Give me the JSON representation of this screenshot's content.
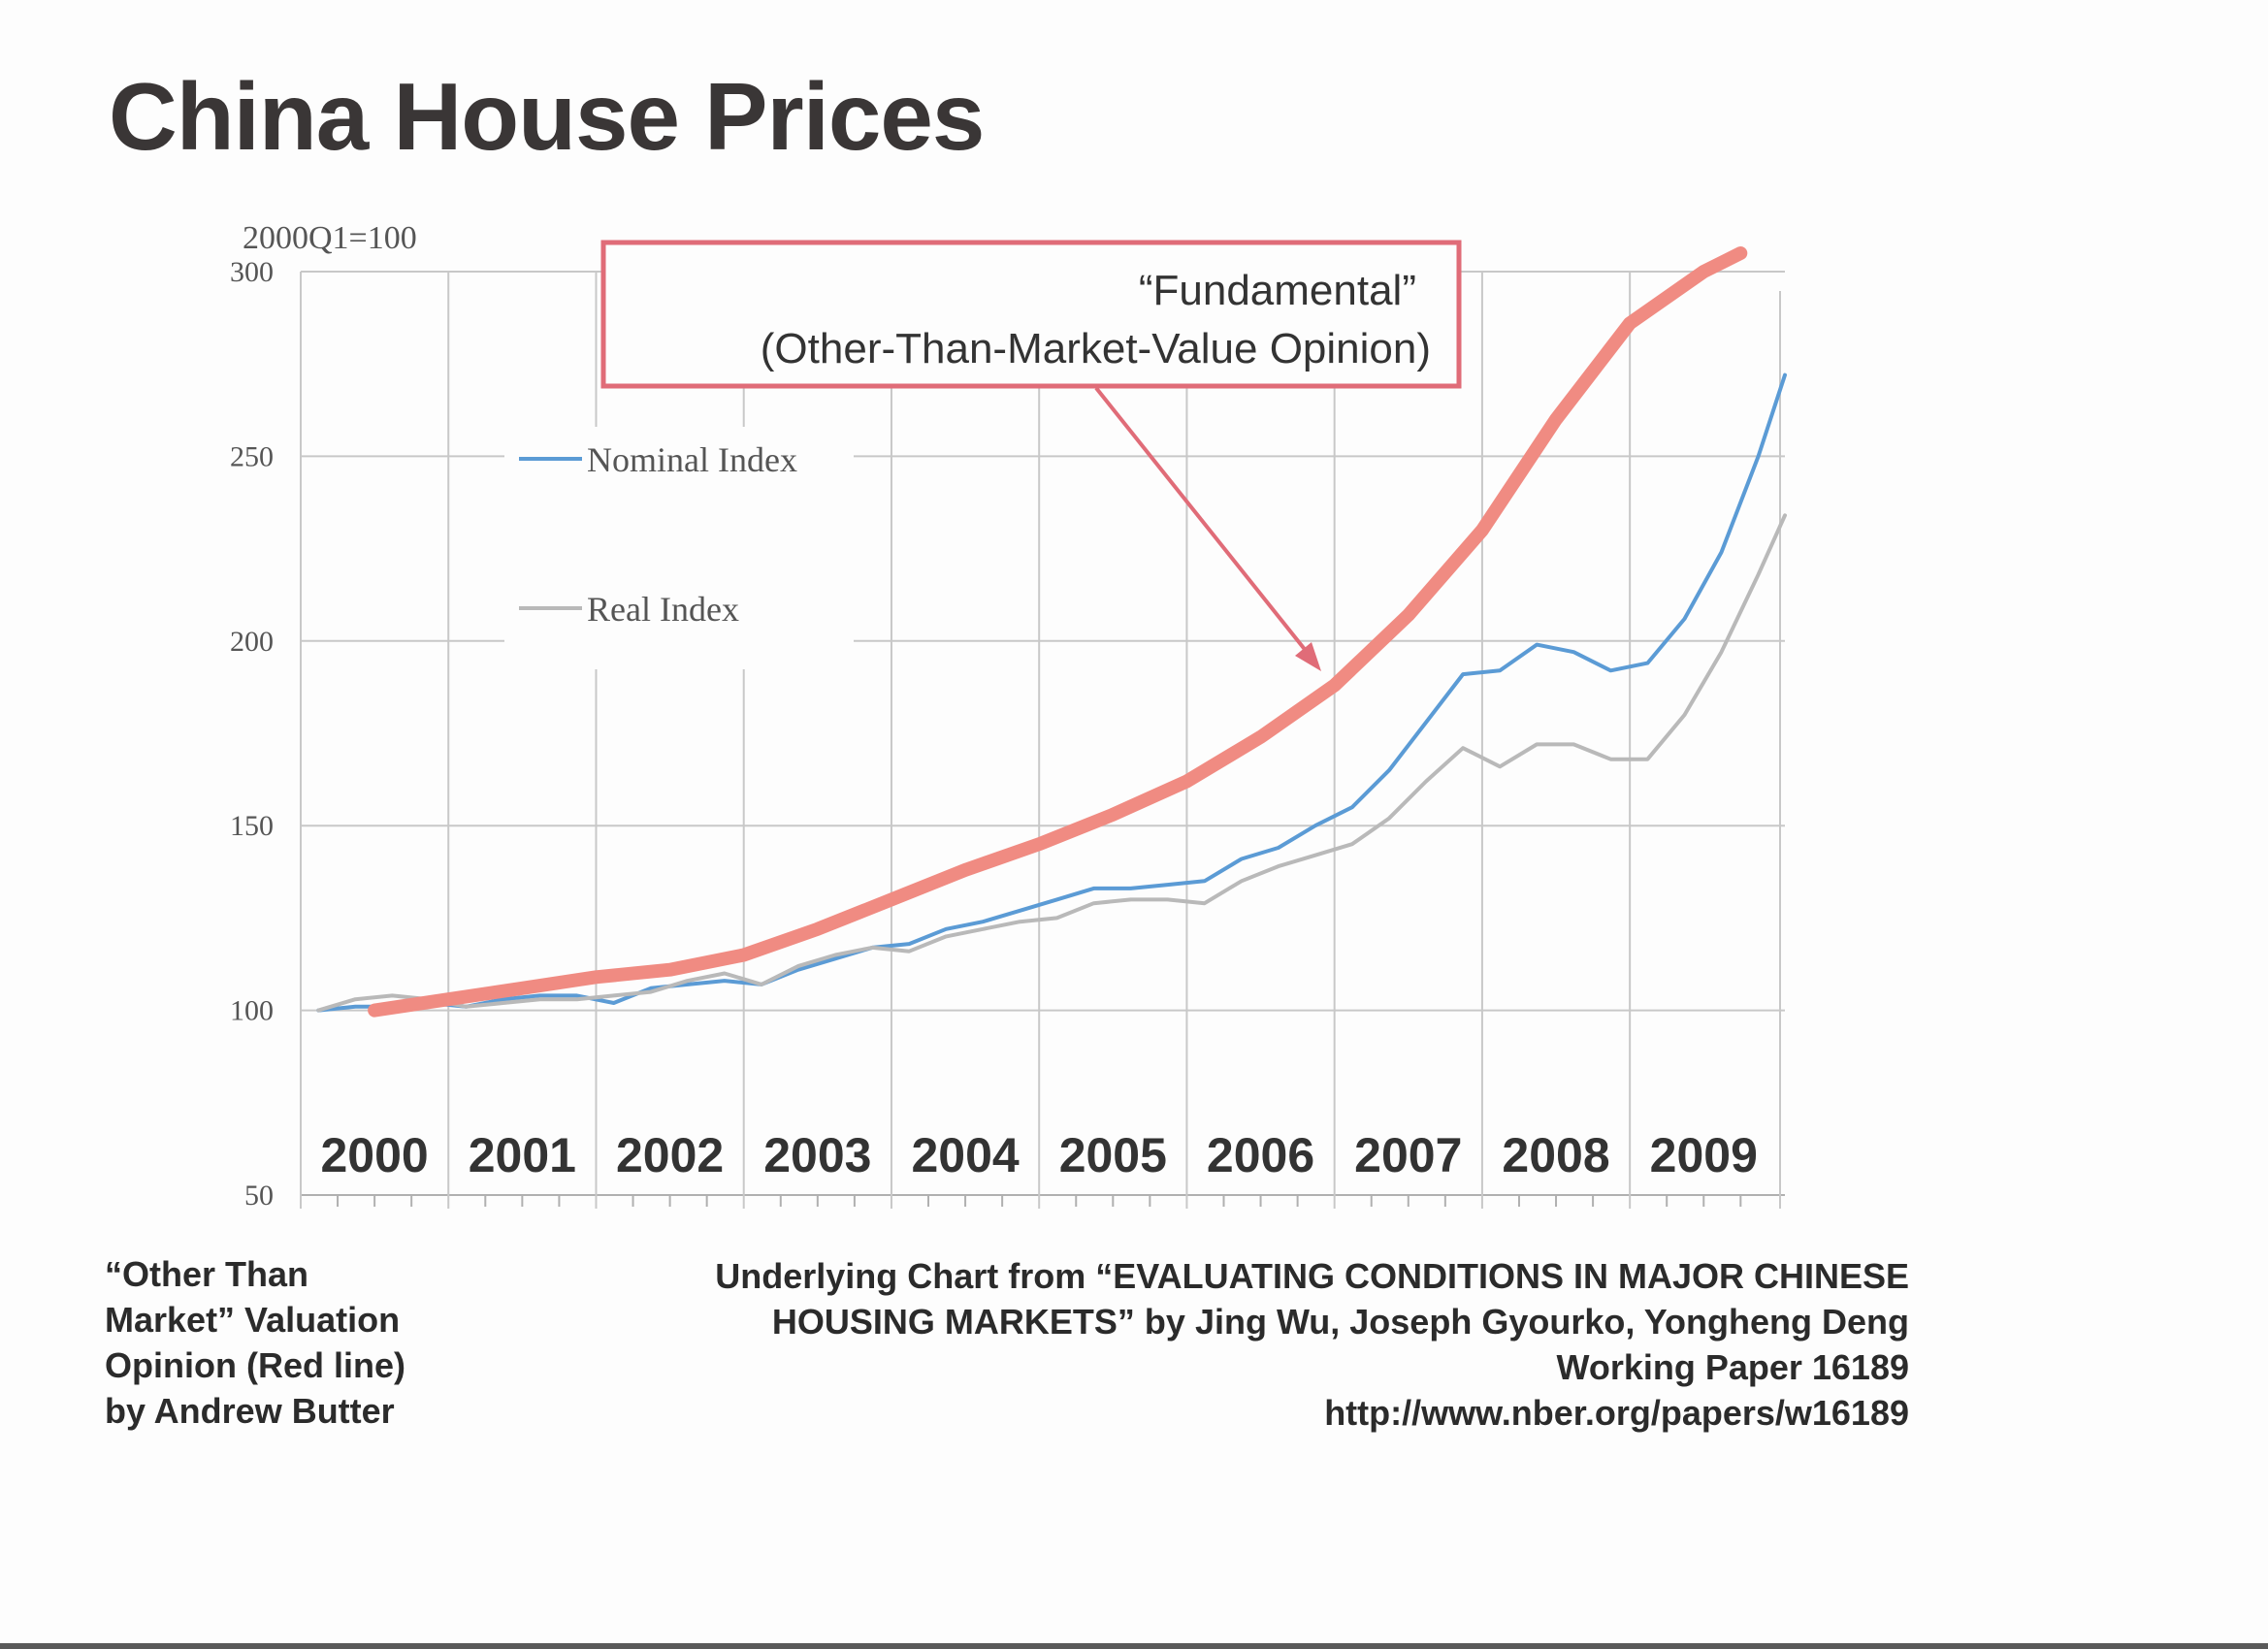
{
  "title": "China House Prices",
  "colors": {
    "nominal": "#5b9bd5",
    "real": "#b9b9b9",
    "fundamental": "#f08b82",
    "callout_border": "#e06c78",
    "grid": "#c8c8c8"
  },
  "chart_data": {
    "type": "line",
    "index_label": "2000Q1=100",
    "ylim": [
      50,
      300
    ],
    "yticks": [
      50,
      100,
      150,
      200,
      250,
      300
    ],
    "year_labels": [
      "2000",
      "2001",
      "2002",
      "2003",
      "2004",
      "2005",
      "2006",
      "2007",
      "2008",
      "2009"
    ],
    "xlim": [
      2000.0,
      2010.05
    ],
    "grid": true,
    "series": [
      {
        "name": "Nominal Index",
        "x": [
          2000.12,
          2000.37,
          2000.62,
          2000.87,
          2001.12,
          2001.37,
          2001.62,
          2001.87,
          2002.12,
          2002.37,
          2002.62,
          2002.87,
          2003.12,
          2003.37,
          2003.62,
          2003.87,
          2004.12,
          2004.37,
          2004.62,
          2004.87,
          2005.12,
          2005.37,
          2005.62,
          2005.87,
          2006.12,
          2006.37,
          2006.62,
          2006.87,
          2007.12,
          2007.37,
          2007.62,
          2007.87,
          2008.12,
          2008.37,
          2008.62,
          2008.87,
          2009.12,
          2009.37,
          2009.62,
          2009.87,
          2010.05
        ],
        "values": [
          100,
          101,
          101,
          102,
          101,
          103,
          104,
          104,
          102,
          106,
          107,
          108,
          107,
          111,
          114,
          117,
          118,
          122,
          124,
          127,
          130,
          133,
          133,
          134,
          135,
          141,
          144,
          150,
          155,
          165,
          178,
          191,
          192,
          199,
          197,
          192,
          194,
          206,
          224,
          250,
          272
        ]
      },
      {
        "name": "Real Index",
        "x": [
          2000.12,
          2000.37,
          2000.62,
          2000.87,
          2001.12,
          2001.37,
          2001.62,
          2001.87,
          2002.12,
          2002.37,
          2002.62,
          2002.87,
          2003.12,
          2003.37,
          2003.62,
          2003.87,
          2004.12,
          2004.37,
          2004.62,
          2004.87,
          2005.12,
          2005.37,
          2005.62,
          2005.87,
          2006.12,
          2006.37,
          2006.62,
          2006.87,
          2007.12,
          2007.37,
          2007.62,
          2007.87,
          2008.12,
          2008.37,
          2008.62,
          2008.87,
          2009.12,
          2009.37,
          2009.62,
          2009.87,
          2010.05
        ],
        "values": [
          100,
          103,
          104,
          103,
          101,
          102,
          103,
          103,
          104,
          105,
          108,
          110,
          107,
          112,
          115,
          117,
          116,
          120,
          122,
          124,
          125,
          129,
          130,
          130,
          129,
          135,
          139,
          142,
          145,
          152,
          162,
          171,
          166,
          172,
          172,
          168,
          168,
          180,
          197,
          218,
          234
        ]
      },
      {
        "name": "Fundamental",
        "x": [
          2000.5,
          2001.0,
          2001.5,
          2002.0,
          2002.5,
          2003.0,
          2003.5,
          2004.0,
          2004.5,
          2005.0,
          2005.5,
          2006.0,
          2006.5,
          2007.0,
          2007.5,
          2008.0,
          2008.5,
          2009.0,
          2009.5,
          2009.75
        ],
        "values": [
          100,
          103,
          106,
          109,
          111,
          115,
          122,
          130,
          138,
          145,
          153,
          162,
          174,
          188,
          207,
          230,
          260,
          286,
          300,
          305
        ]
      }
    ],
    "legend": [
      "Nominal Index",
      "Real Index"
    ]
  },
  "callout": {
    "line1": "“Fundamental”",
    "line2": "(Other-Than-Market-Value Opinion)"
  },
  "footnote_left": [
    "“Other Than",
    "Market” Valuation",
    "Opinion (Red line)",
    "by Andrew Butter"
  ],
  "source": [
    "Underlying Chart from “EVALUATING CONDITIONS IN MAJOR CHINESE",
    "HOUSING MARKETS” by Jing Wu, Joseph Gyourko, Yongheng Deng",
    "Working Paper 16189",
    "http://www.nber.org/papers/w16189"
  ]
}
